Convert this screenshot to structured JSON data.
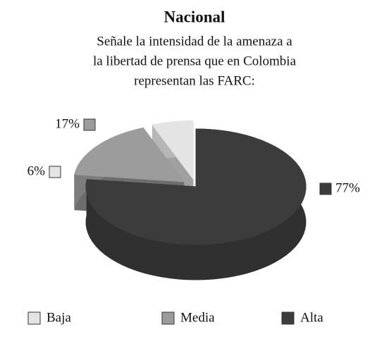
{
  "chart_data": {
    "type": "pie",
    "title": "Nacional",
    "subtitle": [
      "Señale la intensidad de la amenaza a",
      "la libertad de prensa que en Colombia",
      "representan las FARC:"
    ],
    "categories": [
      "Baja",
      "Media",
      "Alta"
    ],
    "values": [
      6,
      17,
      77
    ],
    "value_labels": [
      "6%",
      "17%",
      "77%"
    ],
    "colors": [
      "#e4e4e4",
      "#9c9c9c",
      "#3c3c3c"
    ]
  }
}
